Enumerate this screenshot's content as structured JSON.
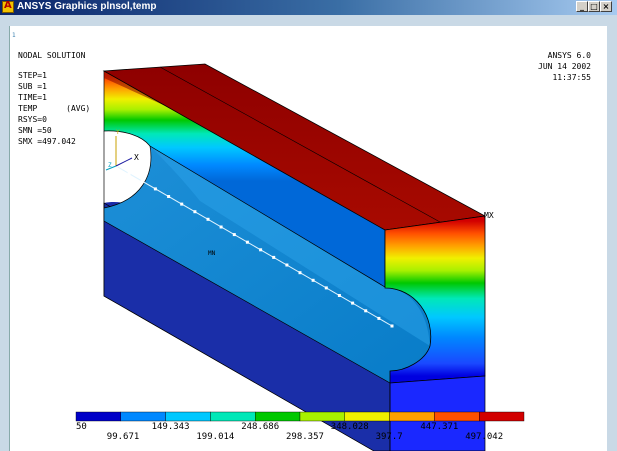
{
  "window": {
    "title": "ANSYS Graphics  plnsol,temp",
    "icon": "ansys-app-icon",
    "controls": {
      "minimize": "_",
      "maximize": "□",
      "close": "×"
    }
  },
  "plot": {
    "heading": "NODAL SOLUTION",
    "info_lines": [
      "STEP=1",
      "SUB =1",
      "TIME=1",
      "TEMP      (AVG)",
      "RSYS=0",
      "SMN =50",
      "SMX =497.042"
    ],
    "product": "ANSYS 6.0",
    "date": "JUN 14 2002",
    "time": "11:37:55",
    "mx_label": "MX",
    "mn_label": "MN",
    "triad": {
      "y": "Y",
      "x": "X",
      "z": "Z"
    },
    "frame_number": "1"
  },
  "legend": {
    "colors": [
      "#0000c8",
      "#0088ff",
      "#00c8ff",
      "#00e8b8",
      "#00c800",
      "#a8f000",
      "#f0f000",
      "#ffa000",
      "#ff5000",
      "#d20000"
    ],
    "top_labels": [
      "50",
      "149.343",
      "248.686",
      "348.028",
      "447.371"
    ],
    "bottom_labels": [
      "99.671",
      "199.014",
      "298.357",
      "397.7",
      "497.042"
    ]
  }
}
